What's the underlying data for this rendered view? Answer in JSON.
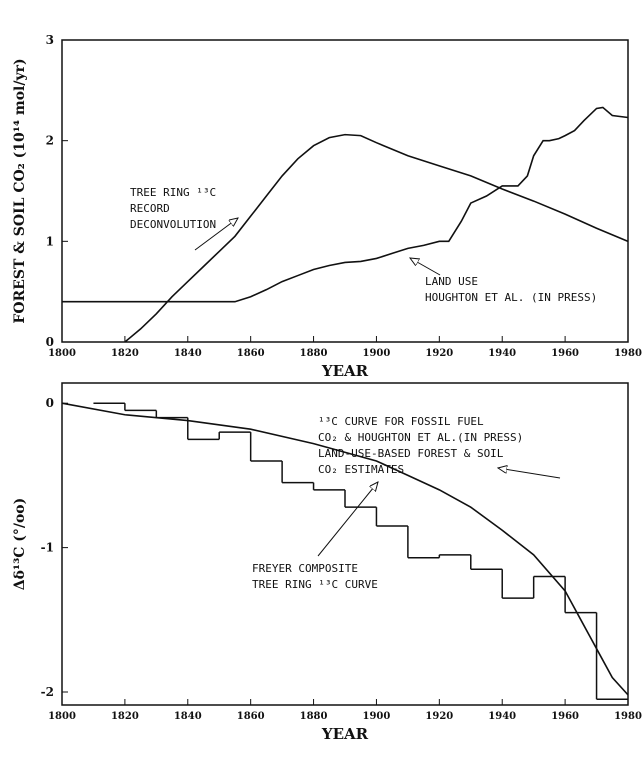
{
  "chart_data": [
    {
      "type": "line",
      "xlabel": "YEAR",
      "ylabel": "FOREST & SOIL CO₂ (10¹⁴ mol/yr)",
      "xlim": [
        1800,
        1980
      ],
      "xticks": [
        1800,
        1820,
        1840,
        1860,
        1880,
        1900,
        1920,
        1940,
        1960,
        1980
      ],
      "ylim": [
        0,
        3
      ],
      "yticks": [
        0,
        1,
        2,
        3
      ],
      "annotations": [
        {
          "lines": [
            "TREE RING ¹³C",
            "RECORD",
            "DECONVOLUTION"
          ]
        },
        {
          "lines": [
            "LAND USE",
            "HOUGHTON ET AL. (IN PRESS)"
          ]
        }
      ],
      "series": [
        {
          "color": "#111111",
          "x": [
            1820,
            1825,
            1830,
            1835,
            1840,
            1845,
            1850,
            1855,
            1860,
            1865,
            1870,
            1875,
            1880,
            1885,
            1890,
            1895,
            1900,
            1910,
            1920,
            1930,
            1940,
            1950,
            1960,
            1970,
            1980
          ],
          "values": [
            0,
            0.13,
            0.28,
            0.45,
            0.6,
            0.75,
            0.9,
            1.05,
            1.25,
            1.45,
            1.65,
            1.82,
            1.95,
            2.03,
            2.06,
            2.05,
            1.98,
            1.85,
            1.75,
            1.65,
            1.52,
            1.4,
            1.27,
            1.13,
            1.0
          ]
        },
        {
          "color": "#111111",
          "x": [
            1800,
            1855,
            1860,
            1865,
            1870,
            1875,
            1880,
            1885,
            1890,
            1895,
            1900,
            1905,
            1910,
            1915,
            1920,
            1923,
            1927,
            1930,
            1935,
            1940,
            1945,
            1948,
            1950,
            1953,
            1955,
            1958,
            1960,
            1963,
            1966,
            1970,
            1972,
            1975,
            1980
          ],
          "values": [
            0.4,
            0.4,
            0.45,
            0.52,
            0.6,
            0.66,
            0.72,
            0.76,
            0.79,
            0.8,
            0.83,
            0.88,
            0.93,
            0.96,
            1.0,
            1.0,
            1.2,
            1.38,
            1.45,
            1.55,
            1.55,
            1.65,
            1.85,
            2.0,
            2.0,
            2.02,
            2.05,
            2.1,
            2.2,
            2.32,
            2.33,
            2.25,
            2.23
          ]
        }
      ]
    },
    {
      "type": "line",
      "xlabel": "YEAR",
      "ylabel": "Δδ¹³C (°/oo)",
      "xlim": [
        1800,
        1980
      ],
      "xticks": [
        1800,
        1820,
        1840,
        1860,
        1880,
        1900,
        1920,
        1940,
        1960,
        1980
      ],
      "ylim": [
        -2.09,
        0.14
      ],
      "yticks": [
        0,
        -1,
        -2
      ],
      "annotations": [
        {
          "lines": [
            "¹³C CURVE FOR FOSSIL FUEL",
            "CO₂ & HOUGHTON ET AL.(IN PRESS)",
            "LAND-USE-BASED FOREST & SOIL",
            "CO₂ ESTIMATES"
          ]
        },
        {
          "lines": [
            "FREYER COMPOSITE",
            "TREE RING ¹³C CURVE"
          ]
        }
      ],
      "series": [
        {
          "color": "#111111",
          "x": [
            1800,
            1820,
            1840,
            1860,
            1880,
            1900,
            1910,
            1920,
            1930,
            1940,
            1950,
            1960,
            1965,
            1970,
            1975,
            1980
          ],
          "values": [
            0,
            -0.08,
            -0.12,
            -0.18,
            -0.28,
            -0.4,
            -0.5,
            -0.6,
            -0.72,
            -0.88,
            -1.05,
            -1.3,
            -1.5,
            -1.7,
            -1.9,
            -2.02
          ]
        },
        {
          "color": "#111111",
          "step": true,
          "bins": [
            1810,
            1820,
            1830,
            1840,
            1850,
            1860,
            1870,
            1880,
            1890,
            1900,
            1910,
            1920,
            1930,
            1940,
            1950,
            1960,
            1970,
            1980
          ],
          "values": [
            0,
            -0.05,
            -0.1,
            -0.25,
            -0.2,
            -0.4,
            -0.55,
            -0.6,
            -0.72,
            -0.85,
            -1.07,
            -1.05,
            -1.15,
            -1.35,
            -1.2,
            -1.45,
            -2.05
          ]
        }
      ]
    }
  ]
}
